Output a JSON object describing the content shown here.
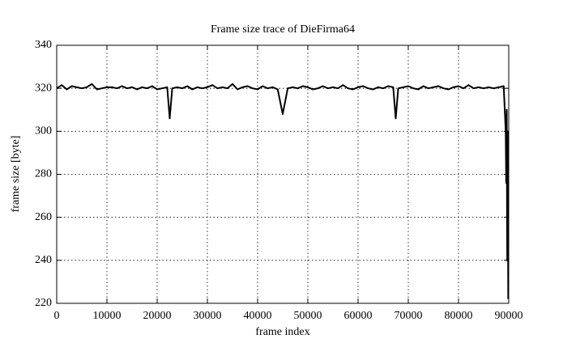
{
  "chart_data": {
    "type": "line",
    "title": "Frame size trace of DieFirma64",
    "xlabel": "frame index",
    "ylabel": "frame size [byte]",
    "xlim": [
      0,
      90000
    ],
    "xticks": [
      0,
      10000,
      20000,
      30000,
      40000,
      50000,
      60000,
      70000,
      80000,
      90000
    ],
    "ylim": [
      220,
      340
    ],
    "yticks": [
      220,
      240,
      260,
      280,
      300,
      320,
      340
    ],
    "grid": true,
    "series": [
      {
        "color": "#000000",
        "x": [
          0,
          1000,
          2000,
          3000,
          4000,
          5000,
          6000,
          7000,
          8000,
          9000,
          10000,
          11000,
          12000,
          13000,
          14000,
          15000,
          16000,
          17000,
          18000,
          19000,
          20000,
          21000,
          22000,
          22500,
          23000,
          24000,
          25000,
          26000,
          27000,
          28000,
          29000,
          30000,
          31000,
          32000,
          33000,
          34000,
          35000,
          36000,
          37000,
          38000,
          39000,
          40000,
          41000,
          42000,
          43000,
          44000,
          45000,
          46000,
          47000,
          48000,
          49000,
          50000,
          51000,
          52000,
          53000,
          54000,
          55000,
          56000,
          57000,
          58000,
          59000,
          60000,
          61000,
          62000,
          63000,
          64000,
          65000,
          66000,
          67000,
          67500,
          68000,
          69000,
          70000,
          71000,
          72000,
          73000,
          74000,
          75000,
          76000,
          77000,
          78000,
          79000,
          80000,
          81000,
          82000,
          83000,
          84000,
          85000,
          86000,
          87000,
          88000,
          89000,
          89400,
          89500,
          89600,
          89700,
          89800,
          89900
        ],
        "values": [
          320,
          321.5,
          319.5,
          321,
          320.5,
          320,
          320.5,
          322,
          319.5,
          320,
          320.5,
          320.5,
          320,
          321,
          320,
          320.5,
          319.5,
          320.5,
          320,
          321,
          319.5,
          320,
          320.5,
          306,
          320,
          320.5,
          320,
          321,
          319.5,
          320.5,
          320,
          320.5,
          321.5,
          320,
          320.5,
          320,
          322,
          319.5,
          320.5,
          321,
          320,
          319.5,
          321,
          320,
          320.5,
          319.5,
          308,
          320,
          320.5,
          320,
          321,
          320.5,
          319.5,
          320,
          321,
          320,
          320.5,
          320,
          321.5,
          320,
          319.5,
          320.5,
          321,
          320,
          319.5,
          320.5,
          320,
          321,
          320.5,
          306,
          320,
          320.5,
          321,
          320,
          319.5,
          321,
          320,
          320.5,
          321,
          320,
          319.5,
          320.5,
          321,
          320,
          321.5,
          320,
          320.5,
          320,
          320.5,
          320,
          320.5,
          321,
          300,
          276,
          310,
          240,
          300,
          222
        ]
      }
    ]
  }
}
